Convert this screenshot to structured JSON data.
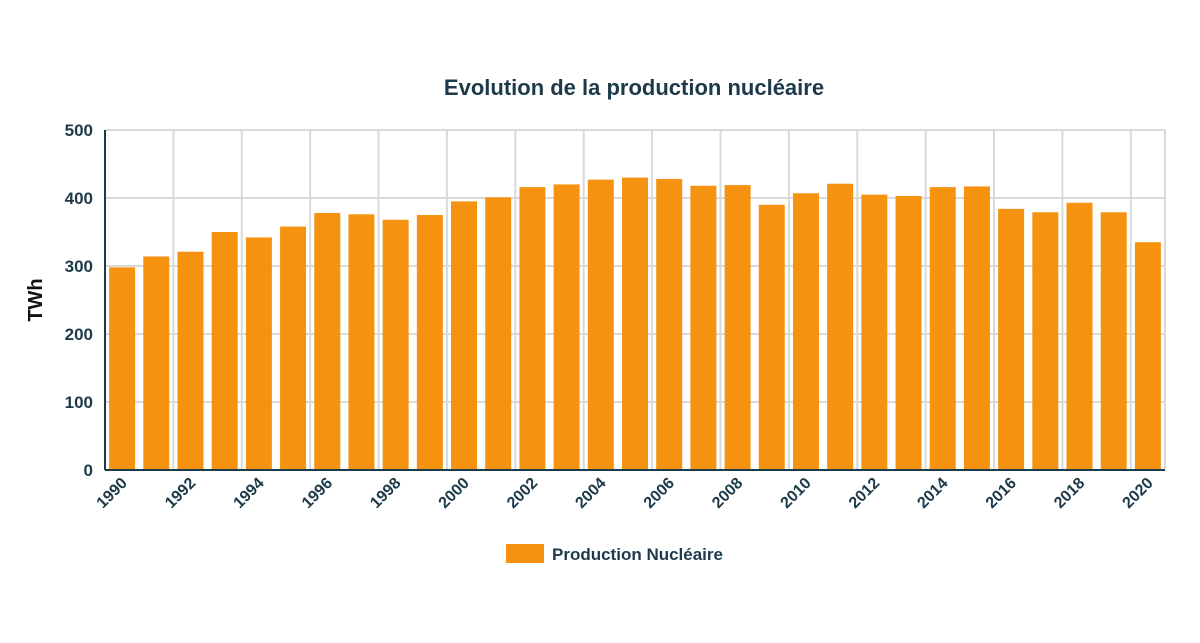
{
  "chart_data": {
    "type": "bar",
    "title": "Evolution de la production nucléaire",
    "xlabel": "",
    "ylabel": "TWh",
    "ylim": [
      0,
      500
    ],
    "yticks": [
      "0",
      "100",
      "200",
      "300",
      "400",
      "500"
    ],
    "grid": true,
    "legend_position": "bottom-center",
    "colors": {
      "bar": "#f59210",
      "grid": "#d9d9d9",
      "axis": "#1d3a4a",
      "text": "#1d3a4a"
    },
    "categories": [
      "1990",
      "1991",
      "1992",
      "1993",
      "1994",
      "1995",
      "1996",
      "1997",
      "1998",
      "1999",
      "2000",
      "2001",
      "2002",
      "2003",
      "2004",
      "2005",
      "2006",
      "2007",
      "2008",
      "2009",
      "2010",
      "2011",
      "2012",
      "2013",
      "2014",
      "2015",
      "2016",
      "2017",
      "2018",
      "2019",
      "2020"
    ],
    "xtick_labels": [
      "1990",
      "1992",
      "1994",
      "1996",
      "1998",
      "2000",
      "2002",
      "2004",
      "2006",
      "2008",
      "2010",
      "2012",
      "2014",
      "2016",
      "2018",
      "2020"
    ],
    "series": [
      {
        "name": "Production Nucléaire",
        "values": [
          298,
          314,
          321,
          350,
          342,
          358,
          378,
          376,
          368,
          375,
          395,
          401,
          416,
          420,
          427,
          430,
          428,
          418,
          419,
          390,
          407,
          421,
          405,
          403,
          416,
          417,
          384,
          379,
          393,
          379,
          335
        ]
      }
    ]
  }
}
